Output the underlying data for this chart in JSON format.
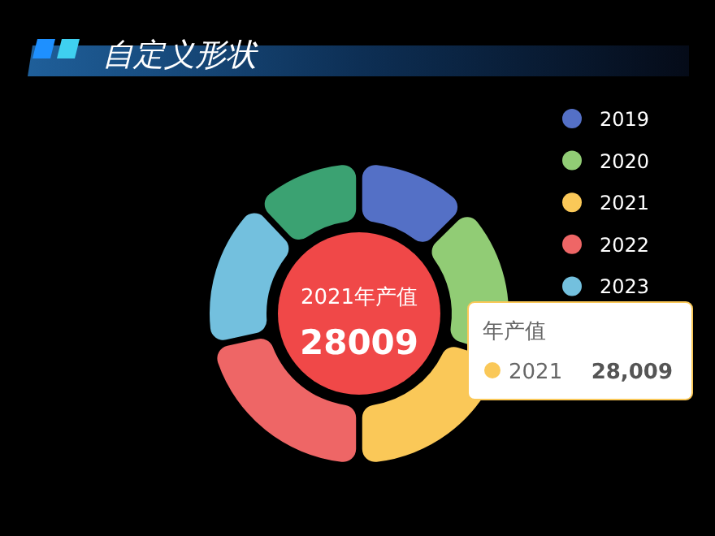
{
  "chart_data": {
    "type": "donut",
    "title": "自定义形状",
    "categories": [
      "2019",
      "2020",
      "2021",
      "2022",
      "2023",
      null
    ],
    "values": [
      12.5,
      17.2,
      20.3,
      21.7,
      16.4,
      11.9
    ],
    "colors": [
      "#5470c6",
      "#91cc75",
      "#fac858",
      "#ee6666",
      "#73c0de",
      "#3ba272"
    ],
    "legend": "top right",
    "annotations": [
      "2021年产值",
      "28009",
      "年产值",
      "2021",
      "28,009"
    ]
  }
}
